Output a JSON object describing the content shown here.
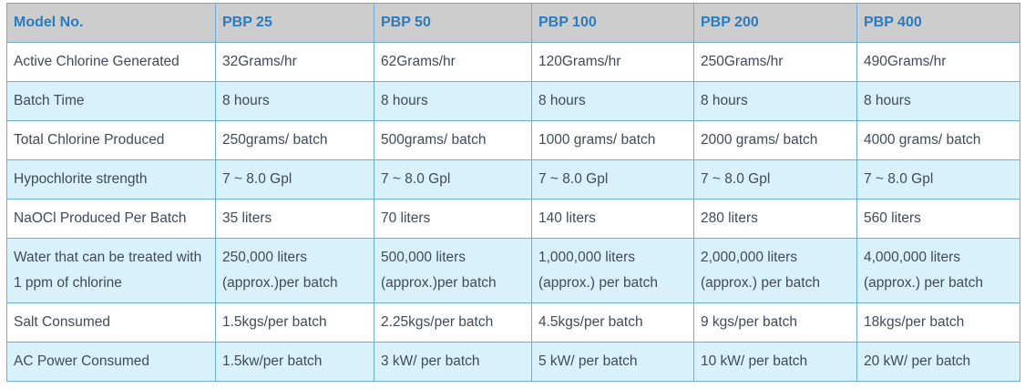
{
  "table": {
    "headers": [
      "Model No.",
      "PBP 25",
      "PBP 50",
      "PBP 100",
      "PBP 200",
      "PBP 400"
    ],
    "rows": [
      [
        "Active Chlorine Generated",
        "32Grams/hr",
        "62Grams/hr",
        "120Grams/hr",
        "250Grams/hr",
        "490Grams/hr"
      ],
      [
        "Batch Time",
        "8 hours",
        "8 hours",
        "8 hours",
        "8 hours",
        "8 hours"
      ],
      [
        "Total Chlorine Produced",
        "250grams/ batch",
        "500grams/ batch",
        "1000 grams/ batch",
        "2000 grams/ batch",
        "4000 grams/ batch"
      ],
      [
        "Hypochlorite strength",
        "7 ~ 8.0 Gpl",
        "7 ~ 8.0 Gpl",
        "7 ~ 8.0 Gpl",
        "7 ~ 8.0 Gpl",
        "7 ~ 8.0 Gpl"
      ],
      [
        "NaOCl Produced Per Batch",
        "35 liters",
        "70 liters",
        "140 liters",
        "280 liters",
        "560 liters"
      ],
      [
        [
          "Water that can be treated with",
          "1 ppm of chlorine"
        ],
        [
          "250,000 liters",
          "(approx.)per batch"
        ],
        [
          "500,000 liters",
          "(approx.)per batch"
        ],
        [
          "1,000,000 liters",
          "(approx.) per batch"
        ],
        [
          "2,000,000 liters",
          "(approx.) per batch"
        ],
        [
          "4,000,000 liters",
          "(approx.) per batch"
        ]
      ],
      [
        "Salt Consumed",
        "1.5kgs/per batch",
        "2.25kgs/per batch",
        "4.5kgs/per batch",
        "9 kgs/per batch",
        "18kgs/per batch"
      ],
      [
        "AC Power Consumed",
        "1.5kw/per batch",
        "3 kW/ per batch",
        "5 kW/ per batch",
        "10 kW/ per batch",
        "20 kW/ per batch"
      ]
    ]
  }
}
